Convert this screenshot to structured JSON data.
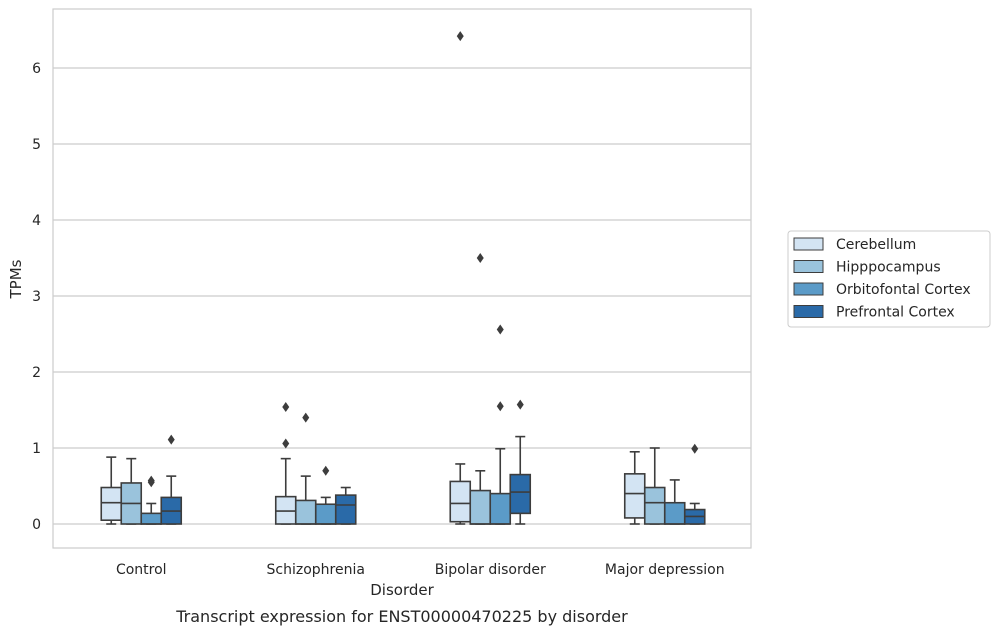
{
  "caption": "Transcript expression for ENST00000470225 by disorder",
  "chart_data": {
    "type": "box",
    "xlabel": "Disorder",
    "ylabel": "TPMs",
    "ylim": [
      -0.3,
      6.75
    ],
    "yticks": [
      0,
      1,
      2,
      3,
      4,
      5,
      6
    ],
    "grid": "horizontal",
    "legend_position": "right",
    "categories": [
      "Control",
      "Schizophrenia",
      "Bipolar disorder",
      "Major depression"
    ],
    "series": [
      {
        "name": "Cerebellum",
        "color": "#d3e4f3",
        "boxes": [
          {
            "whislo": 0.0,
            "q1": 0.05,
            "med": 0.28,
            "q3": 0.48,
            "whishi": 0.88,
            "fliers": []
          },
          {
            "whislo": 0.0,
            "q1": 0.0,
            "med": 0.17,
            "q3": 0.36,
            "whishi": 0.86,
            "fliers": [
              1.06,
              1.54
            ]
          },
          {
            "whislo": 0.0,
            "q1": 0.03,
            "med": 0.27,
            "q3": 0.56,
            "whishi": 0.79,
            "fliers": [
              6.42
            ]
          },
          {
            "whislo": 0.0,
            "q1": 0.08,
            "med": 0.4,
            "q3": 0.66,
            "whishi": 0.95,
            "fliers": []
          }
        ]
      },
      {
        "name": "Hipppocampus",
        "color": "#9ac3dc",
        "boxes": [
          {
            "whislo": 0.0,
            "q1": 0.0,
            "med": 0.27,
            "q3": 0.54,
            "whishi": 0.86,
            "fliers": []
          },
          {
            "whislo": 0.0,
            "q1": 0.0,
            "med": 0.0,
            "q3": 0.31,
            "whishi": 0.63,
            "fliers": [
              1.4
            ]
          },
          {
            "whislo": 0.0,
            "q1": 0.0,
            "med": 0.0,
            "q3": 0.44,
            "whishi": 0.7,
            "fliers": [
              3.5
            ]
          },
          {
            "whislo": 0.0,
            "q1": 0.0,
            "med": 0.28,
            "q3": 0.48,
            "whishi": 1.0,
            "fliers": []
          }
        ]
      },
      {
        "name": "Orbitofontal Cortex",
        "color": "#5b9bc8",
        "boxes": [
          {
            "whislo": 0.0,
            "q1": 0.0,
            "med": 0.0,
            "q3": 0.14,
            "whishi": 0.27,
            "fliers": [
              0.55,
              0.57
            ]
          },
          {
            "whislo": 0.0,
            "q1": 0.0,
            "med": 0.0,
            "q3": 0.26,
            "whishi": 0.35,
            "fliers": [
              0.7
            ]
          },
          {
            "whislo": 0.0,
            "q1": 0.0,
            "med": 0.0,
            "q3": 0.4,
            "whishi": 0.99,
            "fliers": [
              1.55,
              2.56
            ]
          },
          {
            "whislo": 0.0,
            "q1": 0.0,
            "med": 0.0,
            "q3": 0.28,
            "whishi": 0.58,
            "fliers": []
          }
        ]
      },
      {
        "name": "Prefrontal Cortex",
        "color": "#2a6aa8",
        "boxes": [
          {
            "whislo": 0.0,
            "q1": 0.0,
            "med": 0.17,
            "q3": 0.35,
            "whishi": 0.63,
            "fliers": [
              1.11
            ]
          },
          {
            "whislo": 0.0,
            "q1": 0.0,
            "med": 0.25,
            "q3": 0.38,
            "whishi": 0.48,
            "fliers": []
          },
          {
            "whislo": 0.0,
            "q1": 0.14,
            "med": 0.42,
            "q3": 0.65,
            "whishi": 1.15,
            "fliers": [
              1.57
            ]
          },
          {
            "whislo": 0.0,
            "q1": 0.0,
            "med": 0.1,
            "q3": 0.19,
            "whishi": 0.27,
            "fliers": [
              0.99
            ]
          }
        ]
      }
    ]
  }
}
